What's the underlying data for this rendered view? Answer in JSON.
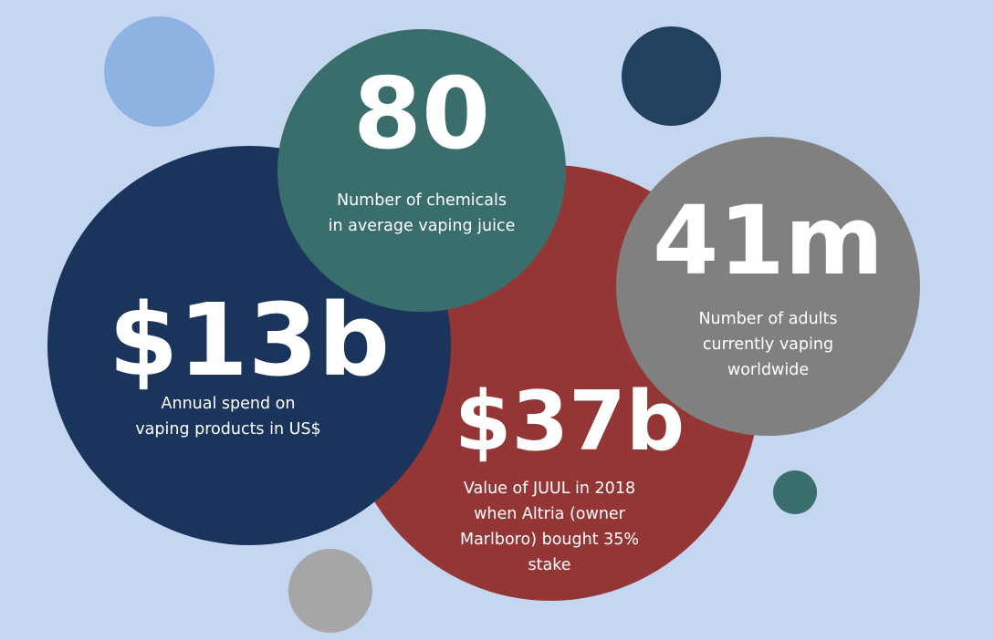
{
  "colors": {
    "background": "#c5d7f0",
    "light_blue": "#8eb2e2",
    "navy": "#1a345c",
    "navy_small": "#24405f",
    "teal": "#3a6e6c",
    "red": "#943636",
    "grey": "#808080",
    "grey_small": "#a6a6a6"
  },
  "stats": {
    "chemicals": {
      "value": "80",
      "caption": [
        "Number of chemicals",
        "in average vaping juice"
      ]
    },
    "adults": {
      "value": "41m",
      "caption": [
        "Number of adults",
        "currently vaping",
        "worldwide"
      ]
    },
    "spend": {
      "value": "$13b",
      "caption": [
        "Annual spend on",
        "vaping products in US$"
      ]
    },
    "juul": {
      "value": "$37b",
      "caption": [
        "Value of JUUL in 2018",
        "when Altria (owner",
        "Marlboro) bought 35%",
        "stake"
      ]
    }
  }
}
